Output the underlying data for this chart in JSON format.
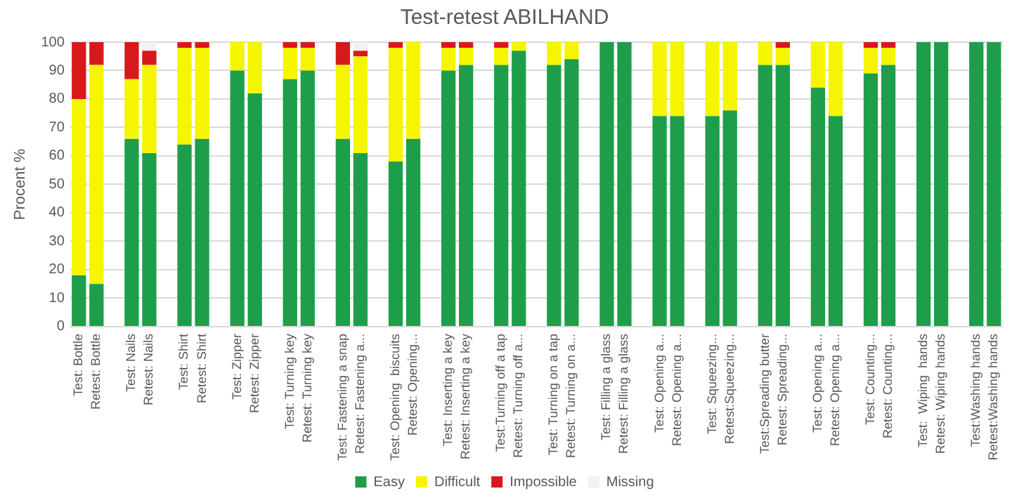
{
  "chart_data": {
    "type": "bar",
    "title": "Test-retest ABILHAND",
    "ylabel": "Procent %",
    "stacked": true,
    "grid": "y",
    "legend": "bottom",
    "categories": [
      "Test: Bottle",
      "Retest: Bottle",
      null,
      "Test: Nails",
      "Retest: Nails",
      null,
      "Test: Shirt",
      "Retest: Shirt",
      null,
      "Test: Zipper",
      "Retest: Zipper",
      null,
      "Test: Turning key",
      "Retest: Turning key",
      null,
      "Test: Fastening a snap",
      "Retest: Fastening a...",
      null,
      "Test: Opening  biscuits",
      "Retest: Opening...",
      null,
      "Test: Inserting a key",
      "Retest: Inserting a key",
      null,
      "Test:Turning off a tap",
      "Retest: Turning off a...",
      null,
      "Test: Turning on a tap",
      "Retest: Turning on a...",
      null,
      "Test: Filling a glass",
      "Retest: Filling a glass",
      null,
      "Test: Opening a...",
      "Retest: Opening a...",
      null,
      "Test: Squeezing...",
      "Retest:Squeezing...",
      null,
      "Test:Spreading butter",
      "Retest: Spreading...",
      null,
      "Test: Opening a...",
      "Retest: Opening a...",
      null,
      "Test: Counting...",
      "Retest: Counting...",
      null,
      "Test:  Wiping  hands",
      "Retest: Wiping hands",
      null,
      "Test:Washing hands",
      "Retest:Washing hands"
    ],
    "ylim": [
      0,
      100
    ],
    "yticks": [
      0,
      10,
      20,
      30,
      40,
      50,
      60,
      70,
      80,
      90,
      100
    ],
    "series": [
      {
        "name": "Easy",
        "color": "#1e9e4a",
        "values": [
          18,
          15,
          null,
          66,
          61,
          null,
          64,
          66,
          null,
          90,
          82,
          null,
          87,
          90,
          null,
          66,
          61,
          null,
          58,
          66,
          null,
          90,
          92,
          null,
          92,
          97,
          null,
          92,
          94,
          null,
          100,
          100,
          null,
          74,
          74,
          null,
          74,
          76,
          null,
          92,
          92,
          null,
          84,
          74,
          null,
          89,
          92,
          null,
          100,
          100,
          null,
          100,
          100
        ]
      },
      {
        "name": "Difficult",
        "color": "#f5f500",
        "values": [
          62,
          77,
          null,
          21,
          31,
          null,
          34,
          32,
          null,
          10,
          18,
          null,
          11,
          8,
          null,
          26,
          34,
          null,
          40,
          34,
          null,
          8,
          6,
          null,
          6,
          3,
          null,
          8,
          6,
          null,
          0,
          0,
          null,
          26,
          26,
          null,
          26,
          24,
          null,
          8,
          6,
          null,
          16,
          26,
          null,
          9,
          6,
          null,
          0,
          0,
          null,
          0,
          0
        ]
      },
      {
        "name": "Impossible",
        "color": "#d7191c",
        "values": [
          20,
          8,
          null,
          13,
          5,
          null,
          2,
          2,
          null,
          0,
          0,
          null,
          2,
          2,
          null,
          8,
          2,
          null,
          2,
          0,
          null,
          2,
          2,
          null,
          2,
          0,
          null,
          0,
          0,
          null,
          0,
          0,
          null,
          0,
          0,
          null,
          0,
          0,
          null,
          0,
          2,
          null,
          0,
          0,
          null,
          2,
          2,
          null,
          0,
          0,
          null,
          0,
          0
        ]
      },
      {
        "name": "Missing",
        "color": "#f2f2f2",
        "values": [
          0,
          0,
          null,
          0,
          3,
          null,
          0,
          0,
          null,
          0,
          0,
          null,
          0,
          0,
          null,
          0,
          3,
          null,
          0,
          0,
          null,
          0,
          0,
          null,
          0,
          0,
          null,
          0,
          0,
          null,
          0,
          0,
          null,
          0,
          0,
          null,
          0,
          0,
          null,
          0,
          0,
          null,
          0,
          0,
          null,
          0,
          0,
          null,
          0,
          0,
          null,
          0,
          0
        ]
      }
    ]
  }
}
